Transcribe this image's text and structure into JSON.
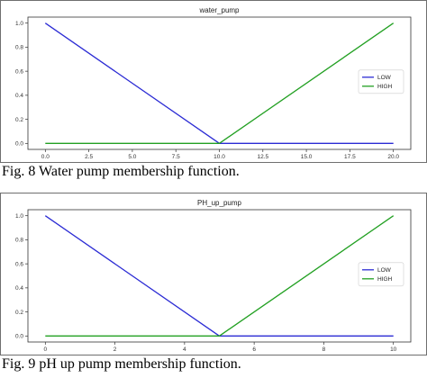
{
  "captions": {
    "fig8": "Fig. 8 Water pump membership function.",
    "fig9": "Fig. 9 pH up pump membership function."
  },
  "colors": {
    "low": "#2b2bd4",
    "high": "#22a022",
    "axes": "#333333"
  },
  "chart_data": [
    {
      "type": "line",
      "title": "water_pump",
      "xlabel": "",
      "ylabel": "",
      "xlim": [
        -1,
        21
      ],
      "ylim": [
        -0.05,
        1.05
      ],
      "x_ticks": [
        "0.0",
        "2.5",
        "5.0",
        "7.5",
        "10.0",
        "12.5",
        "15.0",
        "17.5",
        "20.0"
      ],
      "y_ticks": [
        "0.0",
        "0.2",
        "0.4",
        "0.6",
        "0.8",
        "1.0"
      ],
      "legend_position": "right",
      "series": [
        {
          "name": "LOW",
          "x": [
            0,
            10,
            20
          ],
          "y": [
            1.0,
            0.0,
            0.0
          ],
          "color": "#2b2bd4"
        },
        {
          "name": "HIGH",
          "x": [
            0,
            10,
            20
          ],
          "y": [
            0.0,
            0.0,
            1.0
          ],
          "color": "#22a022"
        }
      ]
    },
    {
      "type": "line",
      "title": "PH_up_pump",
      "xlabel": "",
      "ylabel": "",
      "xlim": [
        -0.5,
        10.5
      ],
      "ylim": [
        -0.05,
        1.05
      ],
      "x_ticks": [
        "0",
        "2",
        "4",
        "6",
        "8",
        "10"
      ],
      "y_ticks": [
        "0.0",
        "0.2",
        "0.4",
        "0.6",
        "0.8",
        "1.0"
      ],
      "legend_position": "right",
      "series": [
        {
          "name": "LOW",
          "x": [
            0,
            5,
            10
          ],
          "y": [
            1.0,
            0.0,
            0.0
          ],
          "color": "#2b2bd4"
        },
        {
          "name": "HIGH",
          "x": [
            0,
            5,
            10
          ],
          "y": [
            0.0,
            0.0,
            1.0
          ],
          "color": "#22a022"
        }
      ]
    }
  ]
}
